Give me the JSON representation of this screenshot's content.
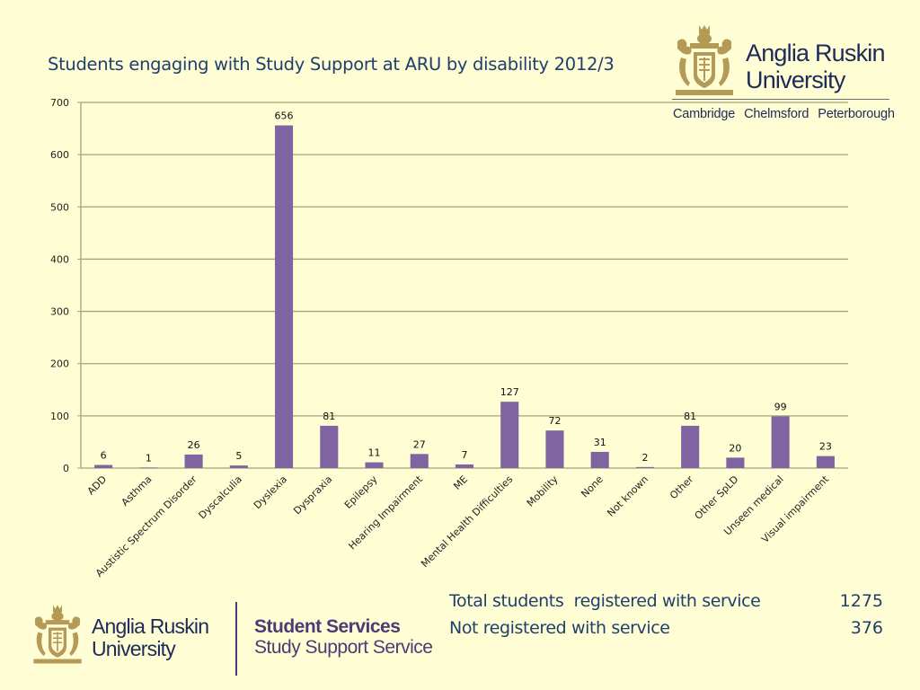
{
  "slide": {
    "title": "Students engaging with Study Support at ARU by disability 2012/3",
    "background_color": "#FFFDD3"
  },
  "logo_top": {
    "icon": "university-crest-icon",
    "name_line1": "Anglia Ruskin",
    "name_line2": "University",
    "campuses": [
      "Cambridge",
      "Chelmsford",
      "Peterborough"
    ],
    "crest_color": "#B59A57"
  },
  "logo_bottom": {
    "icon": "university-crest-icon",
    "name_line1": "Anglia Ruskin",
    "name_line2": "University",
    "department": "Student Services",
    "service": "Study Support Service"
  },
  "stats": [
    {
      "label": "Total students  registered with service",
      "value": "1275"
    },
    {
      "label": "Not registered with service",
      "value": "376"
    }
  ],
  "chart_data": {
    "type": "bar",
    "title": "Students engaging with Study Support at ARU by disability 2012/3",
    "xlabel": "",
    "ylabel": "",
    "categories": [
      "ADD",
      "Asthma",
      "Austistic Spectrum Disorder",
      "Dyscalculia",
      "Dyslexia",
      "Dyspraxia",
      "Epilepsy",
      "Hearing Impairment",
      "ME",
      "Mental Health Difficulties",
      "Mobility",
      "None",
      "Not known",
      "Other",
      "Other SpLD",
      "Unseen medical",
      "Visual impairment"
    ],
    "values": [
      6,
      1,
      26,
      5,
      656,
      81,
      11,
      27,
      7,
      127,
      72,
      31,
      2,
      81,
      20,
      99,
      23
    ],
    "data_labels": [
      "6",
      "1",
      "26",
      "5",
      "656",
      "81",
      "11",
      "27",
      "7",
      "127",
      "72",
      "31",
      "2",
      "81",
      "20",
      "99",
      "23"
    ],
    "ylim": [
      0,
      700
    ],
    "yticks": [
      0,
      100,
      200,
      300,
      400,
      500,
      600,
      700
    ],
    "ytick_labels": [
      "0",
      "100",
      "200",
      "300",
      "400",
      "500",
      "600",
      "700"
    ],
    "grid": true,
    "legend": "none",
    "bar_color": "#8064A2",
    "grid_color": "#A5A37A"
  }
}
